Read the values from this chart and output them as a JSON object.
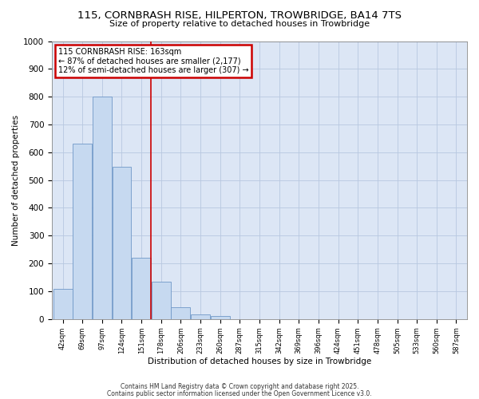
{
  "title_line1": "115, CORNBRASH RISE, HILPERTON, TROWBRIDGE, BA14 7TS",
  "title_line2": "Size of property relative to detached houses in Trowbridge",
  "xlabel": "Distribution of detached houses by size in Trowbridge",
  "ylabel": "Number of detached properties",
  "bar_labels": [
    "42sqm",
    "69sqm",
    "97sqm",
    "124sqm",
    "151sqm",
    "178sqm",
    "206sqm",
    "233sqm",
    "260sqm",
    "287sqm",
    "315sqm",
    "342sqm",
    "369sqm",
    "396sqm",
    "424sqm",
    "451sqm",
    "478sqm",
    "505sqm",
    "533sqm",
    "560sqm",
    "587sqm"
  ],
  "bar_values": [
    107,
    630,
    800,
    547,
    220,
    135,
    43,
    17,
    10,
    0,
    0,
    0,
    0,
    0,
    0,
    0,
    0,
    0,
    0,
    0,
    0
  ],
  "bar_color": "#c6d9f0",
  "bar_edge_color": "#7098c8",
  "grid_color": "#b8c8e0",
  "background_color": "#dce6f5",
  "vline_x": 4.5,
  "vline_color": "#cc0000",
  "annotation_text": "115 CORNBRASH RISE: 163sqm\n← 87% of detached houses are smaller (2,177)\n12% of semi-detached houses are larger (307) →",
  "ann_box_color": "#ffffff",
  "ann_border_color": "#cc0000",
  "ylim": [
    0,
    1000
  ],
  "yticks": [
    0,
    100,
    200,
    300,
    400,
    500,
    600,
    700,
    800,
    900,
    1000
  ],
  "footnote1": "Contains HM Land Registry data © Crown copyright and database right 2025.",
  "footnote2": "Contains public sector information licensed under the Open Government Licence v3.0."
}
